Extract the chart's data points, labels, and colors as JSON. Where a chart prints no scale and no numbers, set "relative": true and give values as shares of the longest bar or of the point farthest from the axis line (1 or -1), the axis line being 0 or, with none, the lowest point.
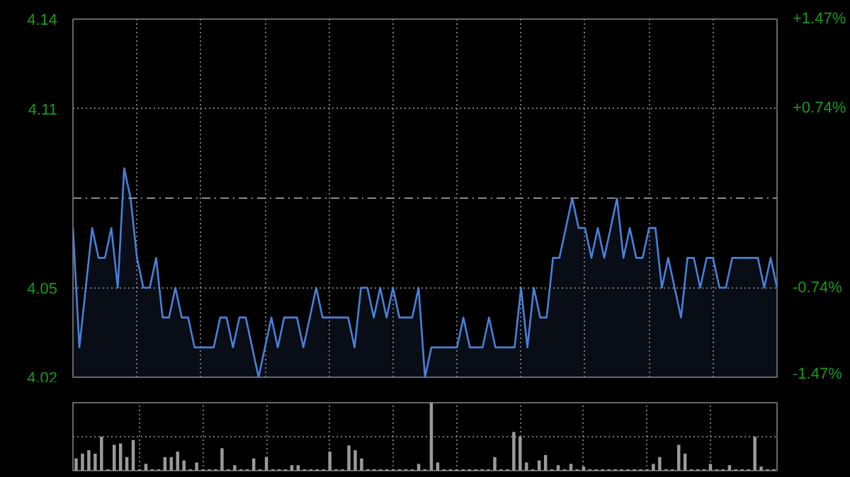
{
  "chart_data": [
    {
      "type": "area",
      "categories": [
        null,
        null,
        null,
        null,
        null,
        null,
        null,
        null,
        null,
        null,
        null,
        null,
        null,
        null,
        null,
        null,
        null,
        null,
        null,
        null,
        null,
        null,
        null,
        null,
        null,
        null,
        null,
        null,
        null,
        null,
        null,
        null,
        null,
        null,
        null,
        null,
        null,
        null,
        null,
        null,
        null,
        null,
        null,
        null,
        null,
        null,
        null,
        null,
        null,
        null,
        null,
        null,
        null,
        null,
        null,
        null,
        null,
        null,
        null,
        null,
        null,
        null,
        null,
        null,
        null,
        null,
        null,
        null,
        null,
        null,
        null,
        null,
        null,
        null,
        null,
        null,
        null,
        null,
        null,
        null,
        null,
        null,
        null,
        null,
        null,
        null,
        null,
        null,
        null,
        null,
        null,
        null,
        null,
        null,
        null,
        null,
        null,
        null,
        null,
        null,
        null,
        null,
        null,
        null,
        null,
        null,
        null,
        null,
        null,
        null,
        null
      ],
      "ylim": [
        4.02,
        4.14
      ],
      "yticks": [
        4.02,
        4.05,
        4.11,
        4.14
      ],
      "y2lim": [
        -1.47,
        1.47
      ],
      "y2ticks": [
        {
          "value": -1.47,
          "label": "-1.47%"
        },
        {
          "value": -0.74,
          "label": "-0.74%"
        },
        {
          "value": 0.74,
          "label": "+0.74%"
        },
        {
          "value": 1.47,
          "label": "+1.47%"
        }
      ],
      "tick_labels": "y",
      "grid": true,
      "ref_lines": [
        {
          "axis": "y",
          "value": 4.08,
          "label": null,
          "color": "#8a8a8a",
          "line_style": "dashed"
        }
      ],
      "series": [
        {
          "color": "#4a80d8",
          "values": [
            4.07,
            4.03,
            4.05,
            4.07,
            4.06,
            4.06,
            4.07,
            4.05,
            4.09,
            4.08,
            4.06,
            4.05,
            4.05,
            4.06,
            4.04,
            4.04,
            4.05,
            4.04,
            4.04,
            4.03,
            4.03,
            4.03,
            4.03,
            4.04,
            4.04,
            4.03,
            4.04,
            4.04,
            4.03,
            4.02,
            4.03,
            4.04,
            4.03,
            4.04,
            4.04,
            4.04,
            4.03,
            4.04,
            4.05,
            4.04,
            4.04,
            4.04,
            4.04,
            4.04,
            4.03,
            4.05,
            4.05,
            4.04,
            4.05,
            4.04,
            4.05,
            4.04,
            4.04,
            4.04,
            4.05,
            4.02,
            4.03,
            4.03,
            4.03,
            4.03,
            4.03,
            4.04,
            4.03,
            4.03,
            4.03,
            4.04,
            4.03,
            4.03,
            4.03,
            4.03,
            4.05,
            4.03,
            4.05,
            4.04,
            4.04,
            4.06,
            4.06,
            4.07,
            4.08,
            4.07,
            4.07,
            4.06,
            4.07,
            4.06,
            4.07,
            4.08,
            4.06,
            4.07,
            4.06,
            4.06,
            4.07,
            4.07,
            4.05,
            4.06,
            4.05,
            4.04,
            4.06,
            4.06,
            4.05,
            4.06,
            4.06,
            4.05,
            4.05,
            4.06,
            4.06,
            4.06,
            4.06,
            4.06,
            4.05,
            4.06,
            4.05
          ]
        }
      ]
    },
    {
      "type": "bar",
      "relative": true,
      "tick_labels": false,
      "grid": true,
      "categories": [
        null,
        null,
        null,
        null,
        null,
        null,
        null,
        null,
        null,
        null,
        null,
        null,
        null,
        null,
        null,
        null,
        null,
        null,
        null,
        null,
        null,
        null,
        null,
        null,
        null,
        null,
        null,
        null,
        null,
        null,
        null,
        null,
        null,
        null,
        null,
        null,
        null,
        null,
        null,
        null,
        null,
        null,
        null,
        null,
        null,
        null,
        null,
        null,
        null,
        null,
        null,
        null,
        null,
        null,
        null,
        null,
        null,
        null,
        null,
        null,
        null,
        null,
        null,
        null,
        null,
        null,
        null,
        null,
        null,
        null,
        null,
        null,
        null,
        null,
        null,
        null,
        null,
        null,
        null,
        null,
        null,
        null,
        null,
        null,
        null,
        null,
        null,
        null,
        null,
        null,
        null,
        null,
        null,
        null,
        null,
        null,
        null,
        null,
        null,
        null,
        null,
        null,
        null,
        null,
        null,
        null,
        null,
        null,
        null,
        null,
        null
      ],
      "values": [
        0.18,
        0.25,
        0.3,
        0.25,
        0.5,
        0.02,
        0.38,
        0.4,
        0.2,
        0.45,
        0.02,
        0.1,
        0.02,
        0.02,
        0.2,
        0.2,
        0.28,
        0.15,
        0.02,
        0.12,
        0.02,
        0.02,
        0.02,
        0.33,
        0.02,
        0.08,
        0.02,
        0.02,
        0.18,
        0.02,
        0.2,
        0.02,
        0.02,
        0.02,
        0.08,
        0.08,
        0.02,
        0.02,
        0.02,
        0.02,
        0.28,
        0.02,
        0.02,
        0.37,
        0.3,
        0.18,
        0.02,
        0.02,
        0.02,
        0.02,
        0.02,
        0.02,
        0.02,
        0.02,
        0.1,
        0.02,
        1,
        0.12,
        0.02,
        0.02,
        0.02,
        0.02,
        0.02,
        0.02,
        0.02,
        0.02,
        0.2,
        0.02,
        0.02,
        0.57,
        0.5,
        0.12,
        0.02,
        0.15,
        0.23,
        0.02,
        0.08,
        0.02,
        0.1,
        0.02,
        0.06,
        0.02,
        0.02,
        0.02,
        0.02,
        0.02,
        0.02,
        0.02,
        0.02,
        0.02,
        0.02,
        0.1,
        0.2,
        0.02,
        0.02,
        0.38,
        0.25,
        0.02,
        0.02,
        0.02,
        0.1,
        0.02,
        0.02,
        0.08,
        0.02,
        0.02,
        0.02,
        0.5,
        0.06,
        0.02,
        0.02
      ],
      "color": "#9a9a9a"
    }
  ]
}
